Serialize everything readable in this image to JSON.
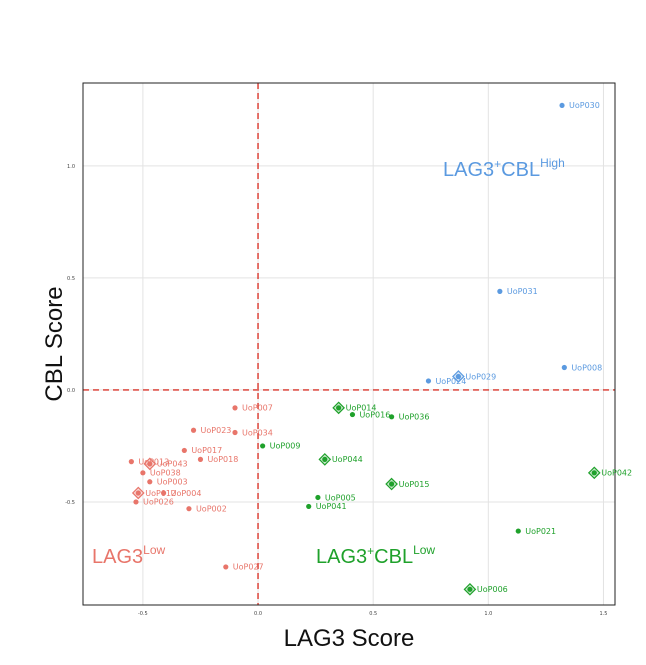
{
  "chart_data": {
    "type": "scatter",
    "xlabel": "LAG3 Score",
    "ylabel": "CBL Score",
    "xlim": [
      -0.76,
      1.55
    ],
    "ylim": [
      -0.96,
      1.37
    ],
    "x_ticks": [
      {
        "value": -0.5,
        "label": "-0.5"
      },
      {
        "value": 0.0,
        "label": "0.0"
      },
      {
        "value": 0.5,
        "label": "0.5"
      },
      {
        "value": 1.0,
        "label": "1.0"
      },
      {
        "value": 1.5,
        "label": "1.5"
      }
    ],
    "y_ticks": [
      {
        "value": -0.5,
        "label": "-0.5"
      },
      {
        "value": 0.0,
        "label": "0.0"
      },
      {
        "value": 0.5,
        "label": "0.5"
      },
      {
        "value": 1.0,
        "label": "1.0"
      }
    ],
    "grid": true,
    "threshold_lines": {
      "x": 0.0,
      "y": 0.0,
      "color": "#d9352a"
    },
    "groups": [
      {
        "key": "lag3_low",
        "label_main": "LAG3",
        "label_sup": "Low",
        "color": "#e8756a"
      },
      {
        "key": "lag3pos_cbl_low",
        "label_main": "LAG3",
        "label_mid": "CBL",
        "label_sup": "Low",
        "color": "#1fa12b"
      },
      {
        "key": "lag3pos_cbl_high",
        "label_main": "LAG3",
        "label_mid": "CBL",
        "label_sup": "High",
        "color": "#5b9ae0"
      }
    ],
    "points": [
      {
        "id": "UoP030",
        "x": 1.32,
        "y": 1.27,
        "group": "lag3pos_cbl_high",
        "highlight": false
      },
      {
        "id": "UoP031",
        "x": 1.05,
        "y": 0.44,
        "group": "lag3pos_cbl_high",
        "highlight": false
      },
      {
        "id": "UoP008",
        "x": 1.33,
        "y": 0.1,
        "group": "lag3pos_cbl_high",
        "highlight": false
      },
      {
        "id": "UoP029",
        "x": 0.87,
        "y": 0.06,
        "group": "lag3pos_cbl_high",
        "highlight": true
      },
      {
        "id": "UoP024",
        "x": 0.74,
        "y": 0.04,
        "group": "lag3pos_cbl_high",
        "highlight": false
      },
      {
        "id": "UoP014",
        "x": 0.35,
        "y": -0.08,
        "group": "lag3pos_cbl_low",
        "highlight": true
      },
      {
        "id": "UoP016",
        "x": 0.41,
        "y": -0.11,
        "group": "lag3pos_cbl_low",
        "highlight": false
      },
      {
        "id": "UoP036",
        "x": 0.58,
        "y": -0.12,
        "group": "lag3pos_cbl_low",
        "highlight": false
      },
      {
        "id": "UoP009",
        "x": 0.02,
        "y": -0.25,
        "group": "lag3pos_cbl_low",
        "highlight": false
      },
      {
        "id": "UoP044",
        "x": 0.29,
        "y": -0.31,
        "group": "lag3pos_cbl_low",
        "highlight": true
      },
      {
        "id": "UoP015",
        "x": 0.58,
        "y": -0.42,
        "group": "lag3pos_cbl_low",
        "highlight": true
      },
      {
        "id": "UoP042",
        "x": 1.46,
        "y": -0.37,
        "group": "lag3pos_cbl_low",
        "highlight": true
      },
      {
        "id": "UoP005",
        "x": 0.26,
        "y": -0.48,
        "group": "lag3pos_cbl_low",
        "highlight": false
      },
      {
        "id": "UoP041",
        "x": 0.22,
        "y": -0.52,
        "group": "lag3pos_cbl_low",
        "highlight": false
      },
      {
        "id": "UoP021",
        "x": 1.13,
        "y": -0.63,
        "group": "lag3pos_cbl_low",
        "highlight": false
      },
      {
        "id": "UoP006",
        "x": 0.92,
        "y": -0.89,
        "group": "lag3pos_cbl_low",
        "highlight": true
      },
      {
        "id": "UoP007",
        "x": -0.1,
        "y": -0.08,
        "group": "lag3_low",
        "highlight": false
      },
      {
        "id": "UoP023",
        "x": -0.28,
        "y": -0.18,
        "group": "lag3_low",
        "highlight": false
      },
      {
        "id": "UoP034",
        "x": -0.1,
        "y": -0.19,
        "group": "lag3_low",
        "highlight": false
      },
      {
        "id": "UoP017",
        "x": -0.32,
        "y": -0.27,
        "group": "lag3_low",
        "highlight": false
      },
      {
        "id": "UoP013",
        "x": -0.55,
        "y": -0.32,
        "group": "lag3_low",
        "highlight": false
      },
      {
        "id": "UoP018",
        "x": -0.25,
        "y": -0.31,
        "group": "lag3_low",
        "highlight": false
      },
      {
        "id": "UoP043",
        "x": -0.47,
        "y": -0.33,
        "group": "lag3_low",
        "highlight": true
      },
      {
        "id": "UoP038",
        "x": -0.5,
        "y": -0.37,
        "group": "lag3_low",
        "highlight": false
      },
      {
        "id": "UoP003",
        "x": -0.47,
        "y": -0.41,
        "group": "lag3_low",
        "highlight": false
      },
      {
        "id": "UoP012",
        "x": -0.52,
        "y": -0.46,
        "group": "lag3_low",
        "highlight": true
      },
      {
        "id": "UoP004",
        "x": -0.41,
        "y": -0.46,
        "group": "lag3_low",
        "highlight": false
      },
      {
        "id": "UoP026",
        "x": -0.53,
        "y": -0.5,
        "group": "lag3_low",
        "highlight": false
      },
      {
        "id": "UoP002",
        "x": -0.3,
        "y": -0.53,
        "group": "lag3_low",
        "highlight": false
      },
      {
        "id": "UoP027",
        "x": -0.14,
        "y": -0.79,
        "group": "lag3_low",
        "highlight": false
      }
    ]
  }
}
